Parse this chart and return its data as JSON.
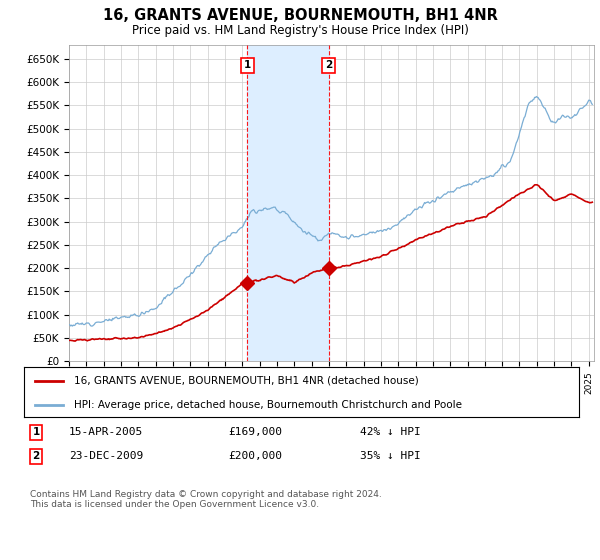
{
  "title": "16, GRANTS AVENUE, BOURNEMOUTH, BH1 4NR",
  "subtitle": "Price paid vs. HM Land Registry's House Price Index (HPI)",
  "hpi_label": "HPI: Average price, detached house, Bournemouth Christchurch and Poole",
  "property_label": "16, GRANTS AVENUE, BOURNEMOUTH, BH1 4NR (detached house)",
  "legend_footer": "Contains HM Land Registry data © Crown copyright and database right 2024.\nThis data is licensed under the Open Government Licence v3.0.",
  "ylim": [
    0,
    680000
  ],
  "yticks": [
    0,
    50000,
    100000,
    150000,
    200000,
    250000,
    300000,
    350000,
    400000,
    450000,
    500000,
    550000,
    600000,
    650000
  ],
  "ytick_labels": [
    "£0",
    "£50K",
    "£100K",
    "£150K",
    "£200K",
    "£250K",
    "£300K",
    "£350K",
    "£400K",
    "£450K",
    "£500K",
    "£550K",
    "£600K",
    "£650K"
  ],
  "transactions": [
    {
      "date": "15-APR-2005",
      "price": 169000,
      "label": "1",
      "hpi_pct": "42% ↓ HPI"
    },
    {
      "date": "23-DEC-2009",
      "price": 200000,
      "label": "2",
      "hpi_pct": "35% ↓ HPI"
    }
  ],
  "transaction_dates_num": [
    2005.29,
    2009.98
  ],
  "transaction_prices": [
    169000,
    200000
  ],
  "shade_region": [
    2005.29,
    2009.98
  ],
  "property_color": "#cc0000",
  "hpi_color": "#7aadd4",
  "shade_color": "#ddeeff",
  "grid_color": "#cccccc",
  "background_color": "#ffffff",
  "title_fontsize": 11,
  "subtitle_fontsize": 9,
  "xlim": [
    1995,
    2025.3
  ]
}
